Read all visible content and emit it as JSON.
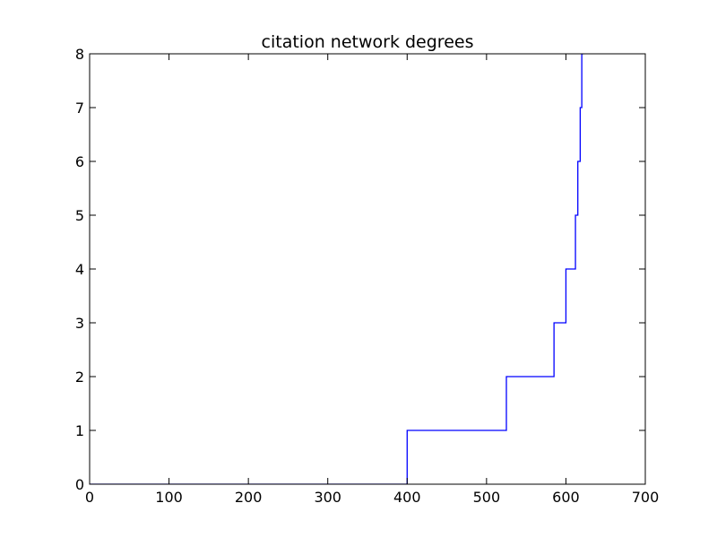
{
  "chart_data": {
    "type": "line",
    "title": "citation network degrees",
    "xlabel": "",
    "ylabel": "",
    "xlim": [
      0,
      700
    ],
    "ylim": [
      0,
      8
    ],
    "xticks": [
      0,
      100,
      200,
      300,
      400,
      500,
      600,
      700
    ],
    "yticks": [
      0,
      1,
      2,
      3,
      4,
      5,
      6,
      7,
      8
    ],
    "xtick_labels": [
      "0",
      "100",
      "200",
      "300",
      "400",
      "500",
      "600",
      "700"
    ],
    "ytick_labels": [
      "0",
      "1",
      "2",
      "3",
      "4",
      "5",
      "6",
      "7",
      "8"
    ],
    "grid": false,
    "series": [
      {
        "color": "#0000ff",
        "x": [
          0,
          400,
          400,
          525,
          525,
          585,
          585,
          600,
          600,
          612,
          612,
          615,
          615,
          618,
          618,
          620,
          620,
          622,
          622
        ],
        "y": [
          0,
          0,
          1,
          1,
          2,
          2,
          3,
          3,
          4,
          4,
          5,
          5,
          6,
          6,
          7,
          7,
          8,
          8,
          9
        ]
      }
    ]
  }
}
